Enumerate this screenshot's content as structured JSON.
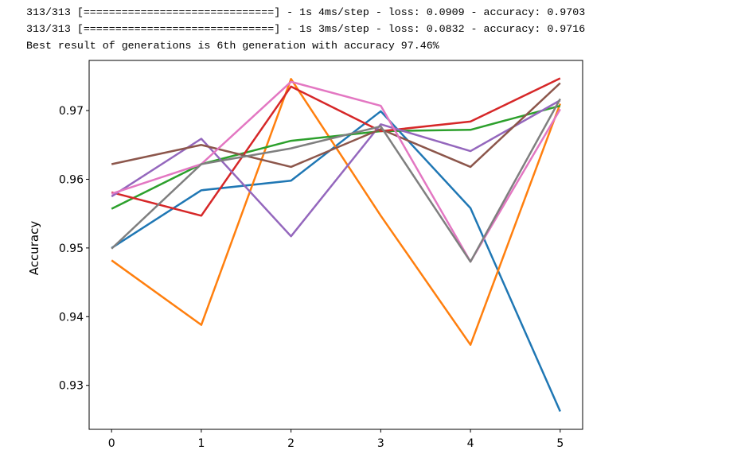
{
  "console": {
    "lines": [
      "313/313 [==============================] - 1s 4ms/step - loss: 0.0909 - accuracy: 0.9703",
      "313/313 [==============================] - 1s 3ms/step - loss: 0.0832 - accuracy: 0.9716",
      "Best result of generations is 6th generation with accuracy 97.46%"
    ]
  },
  "chart_data": {
    "type": "line",
    "ylabel": "Accuracy",
    "x": [
      0,
      1,
      2,
      3,
      4,
      5
    ],
    "xlim": [
      -0.25,
      5.25
    ],
    "xticks": [
      0,
      1,
      2,
      3,
      4,
      5
    ],
    "ylim": [
      0.9236,
      0.9773
    ],
    "yticks": [
      0.93,
      0.94,
      0.95,
      0.96,
      0.97
    ],
    "series": [
      {
        "color": "#1f77b4",
        "values": [
          0.95,
          0.9584,
          0.9598,
          0.9699,
          0.9558,
          0.9262
        ]
      },
      {
        "color": "#ff7f0e",
        "values": [
          0.9482,
          0.9388,
          0.9746,
          0.9547,
          0.9359,
          0.971
        ]
      },
      {
        "color": "#2ca02c",
        "values": [
          0.9557,
          0.9622,
          0.9656,
          0.967,
          0.9672,
          0.9707
        ]
      },
      {
        "color": "#d62728",
        "values": [
          0.9581,
          0.9547,
          0.9735,
          0.967,
          0.9684,
          0.9747
        ]
      },
      {
        "color": "#9467bd",
        "values": [
          0.9575,
          0.9659,
          0.9517,
          0.968,
          0.9641,
          0.9715
        ]
      },
      {
        "color": "#8c564b",
        "values": [
          0.9622,
          0.965,
          0.9618,
          0.9673,
          0.9618,
          0.974
        ]
      },
      {
        "color": "#e377c2",
        "values": [
          0.9579,
          0.9622,
          0.9742,
          0.9707,
          0.948,
          0.9702
        ]
      },
      {
        "color": "#7f7f7f",
        "values": [
          0.9499,
          0.9622,
          0.9645,
          0.9677,
          0.948,
          0.9717
        ]
      }
    ]
  }
}
